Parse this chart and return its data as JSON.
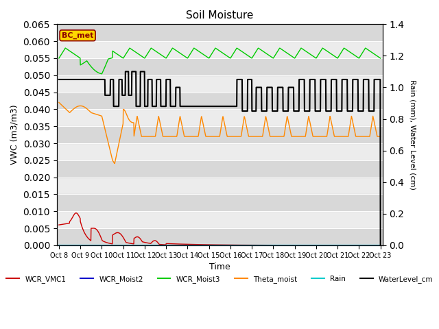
{
  "title": "Soil Moisture",
  "xlabel": "Time",
  "ylabel_left": "VWC (m3/m3)",
  "ylabel_right": "Rain (mm), Water Level (cm)",
  "ylim_left": [
    0,
    0.065
  ],
  "ylim_right": [
    0.0,
    1.4
  ],
  "yticks_left": [
    0.0,
    0.005,
    0.01,
    0.015,
    0.02,
    0.025,
    0.03,
    0.035,
    0.04,
    0.045,
    0.05,
    0.055,
    0.06,
    0.065
  ],
  "yticks_right": [
    0.0,
    0.2,
    0.4,
    0.6,
    0.8,
    1.0,
    1.2,
    1.4
  ],
  "annotation_text": "BC_met",
  "annotation_color": "#8B0000",
  "annotation_bg": "#FFD700",
  "legend_entries": [
    {
      "label": "WCR_VMC1",
      "color": "#cc0000"
    },
    {
      "label": "WCR_Moist2",
      "color": "#0000cc"
    },
    {
      "label": "WCR_Moist3",
      "color": "#00cc00"
    },
    {
      "label": "Theta_moist",
      "color": "#ff8800"
    },
    {
      "label": "Rain",
      "color": "#00cccc"
    },
    {
      "label": "WaterLevel_cm",
      "color": "#000000"
    }
  ],
  "x_tick_labels": [
    "Oct 8",
    "Oct 9",
    "Oct 10",
    "Oct 11",
    "Oct 12",
    "Oct 13",
    "Oct 14",
    "Oct 15",
    "Oct 16",
    "Oct 17",
    "Oct 18",
    "Oct 19",
    "Oct 20",
    "Oct 21",
    "Oct 22",
    "Oct 23"
  ],
  "x_tick_positions": [
    0,
    1,
    2,
    3,
    4,
    5,
    6,
    7,
    8,
    9,
    10,
    11,
    12,
    13,
    14,
    15
  ],
  "xlim": [
    -0.1,
    15.1
  ],
  "gray_bands": [
    [
      0.0,
      0.005
    ],
    [
      0.01,
      0.015
    ],
    [
      0.02,
      0.025
    ],
    [
      0.03,
      0.035
    ],
    [
      0.04,
      0.045
    ],
    [
      0.05,
      0.055
    ],
    [
      0.06,
      0.065
    ]
  ],
  "plot_bg": "#ececec"
}
